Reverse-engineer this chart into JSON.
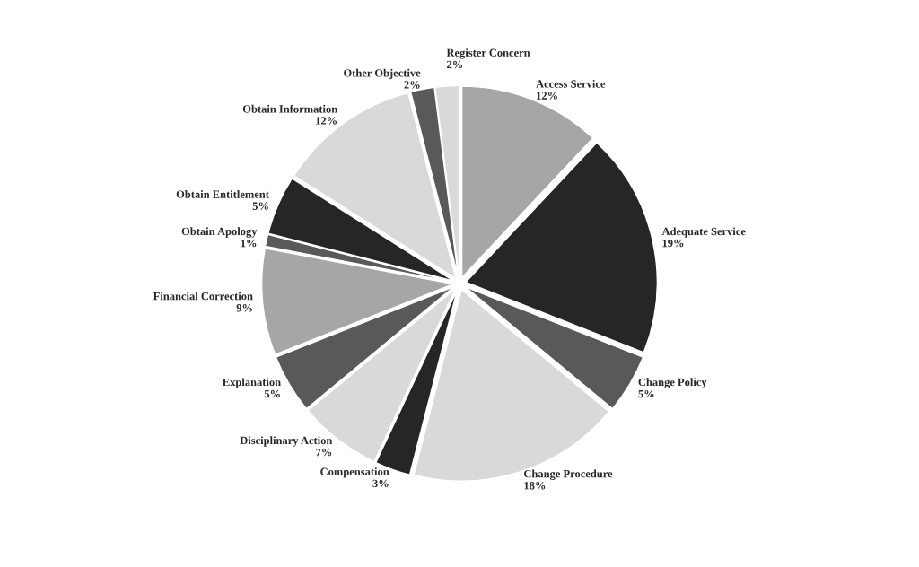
{
  "chart_data": {
    "type": "pie",
    "categories": [
      "Access Service",
      "Adequate Service",
      "Change Policy",
      "Change Procedure",
      "Compensation",
      "Disciplinary Action",
      "Explanation",
      "Financial Correction",
      "Obtain Apology",
      "Obtain Entitlement",
      "Obtain Information",
      "Other Objective",
      "Register Concern"
    ],
    "values": [
      12,
      19,
      5,
      18,
      3,
      7,
      5,
      9,
      1,
      5,
      12,
      2,
      2
    ],
    "value_labels": [
      "12%",
      "19%",
      "5%",
      "18%",
      "3%",
      "7%",
      "5%",
      "9%",
      "1%",
      "5%",
      "12%",
      "2%",
      "2%"
    ],
    "colors": [
      "#a6a6a6",
      "#262626",
      "#595959",
      "#d9d9d9",
      "#262626",
      "#d9d9d9",
      "#595959",
      "#a6a6a6",
      "#595959",
      "#262626",
      "#d9d9d9",
      "#595959",
      "#d9d9d9"
    ],
    "legend": false
  }
}
